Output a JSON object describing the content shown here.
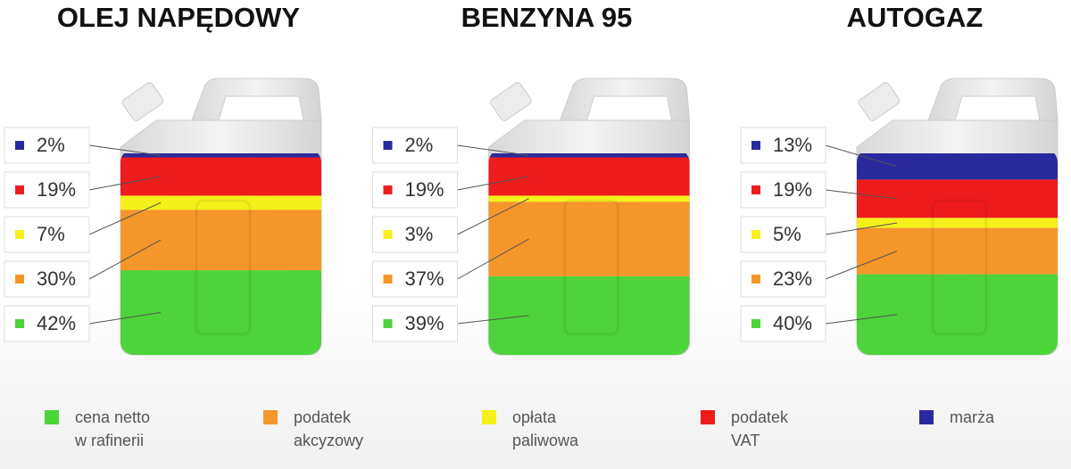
{
  "chart_data": {
    "type": "stacked-can",
    "categories": [
      "OLEJ NAPĘDOWY",
      "BENZYNA 95",
      "AUTOGAZ"
    ],
    "series": [
      {
        "name": "cena netto w rafinerii",
        "color": "#4cd43a",
        "values": [
          42,
          39,
          40
        ],
        "value_labels": [
          "42%",
          "39%",
          "40%"
        ]
      },
      {
        "name": "podatek akcyzowy",
        "color": "#f5962a",
        "values": [
          30,
          37,
          23
        ],
        "value_labels": [
          "30%",
          "37%",
          "23%"
        ]
      },
      {
        "name": "opłata paliwowa",
        "color": "#f5f01a",
        "values": [
          7,
          3,
          5
        ],
        "value_labels": [
          "7%",
          "3%",
          "5%"
        ]
      },
      {
        "name": "podatek VAT",
        "color": "#ee1c1c",
        "values": [
          19,
          19,
          19
        ],
        "value_labels": [
          "19%",
          "19%",
          "19%"
        ]
      },
      {
        "name": "marża",
        "color": "#2a2a9e",
        "values": [
          2,
          2,
          13
        ],
        "value_labels": [
          "2%",
          "2%",
          "13%"
        ]
      }
    ]
  }
}
